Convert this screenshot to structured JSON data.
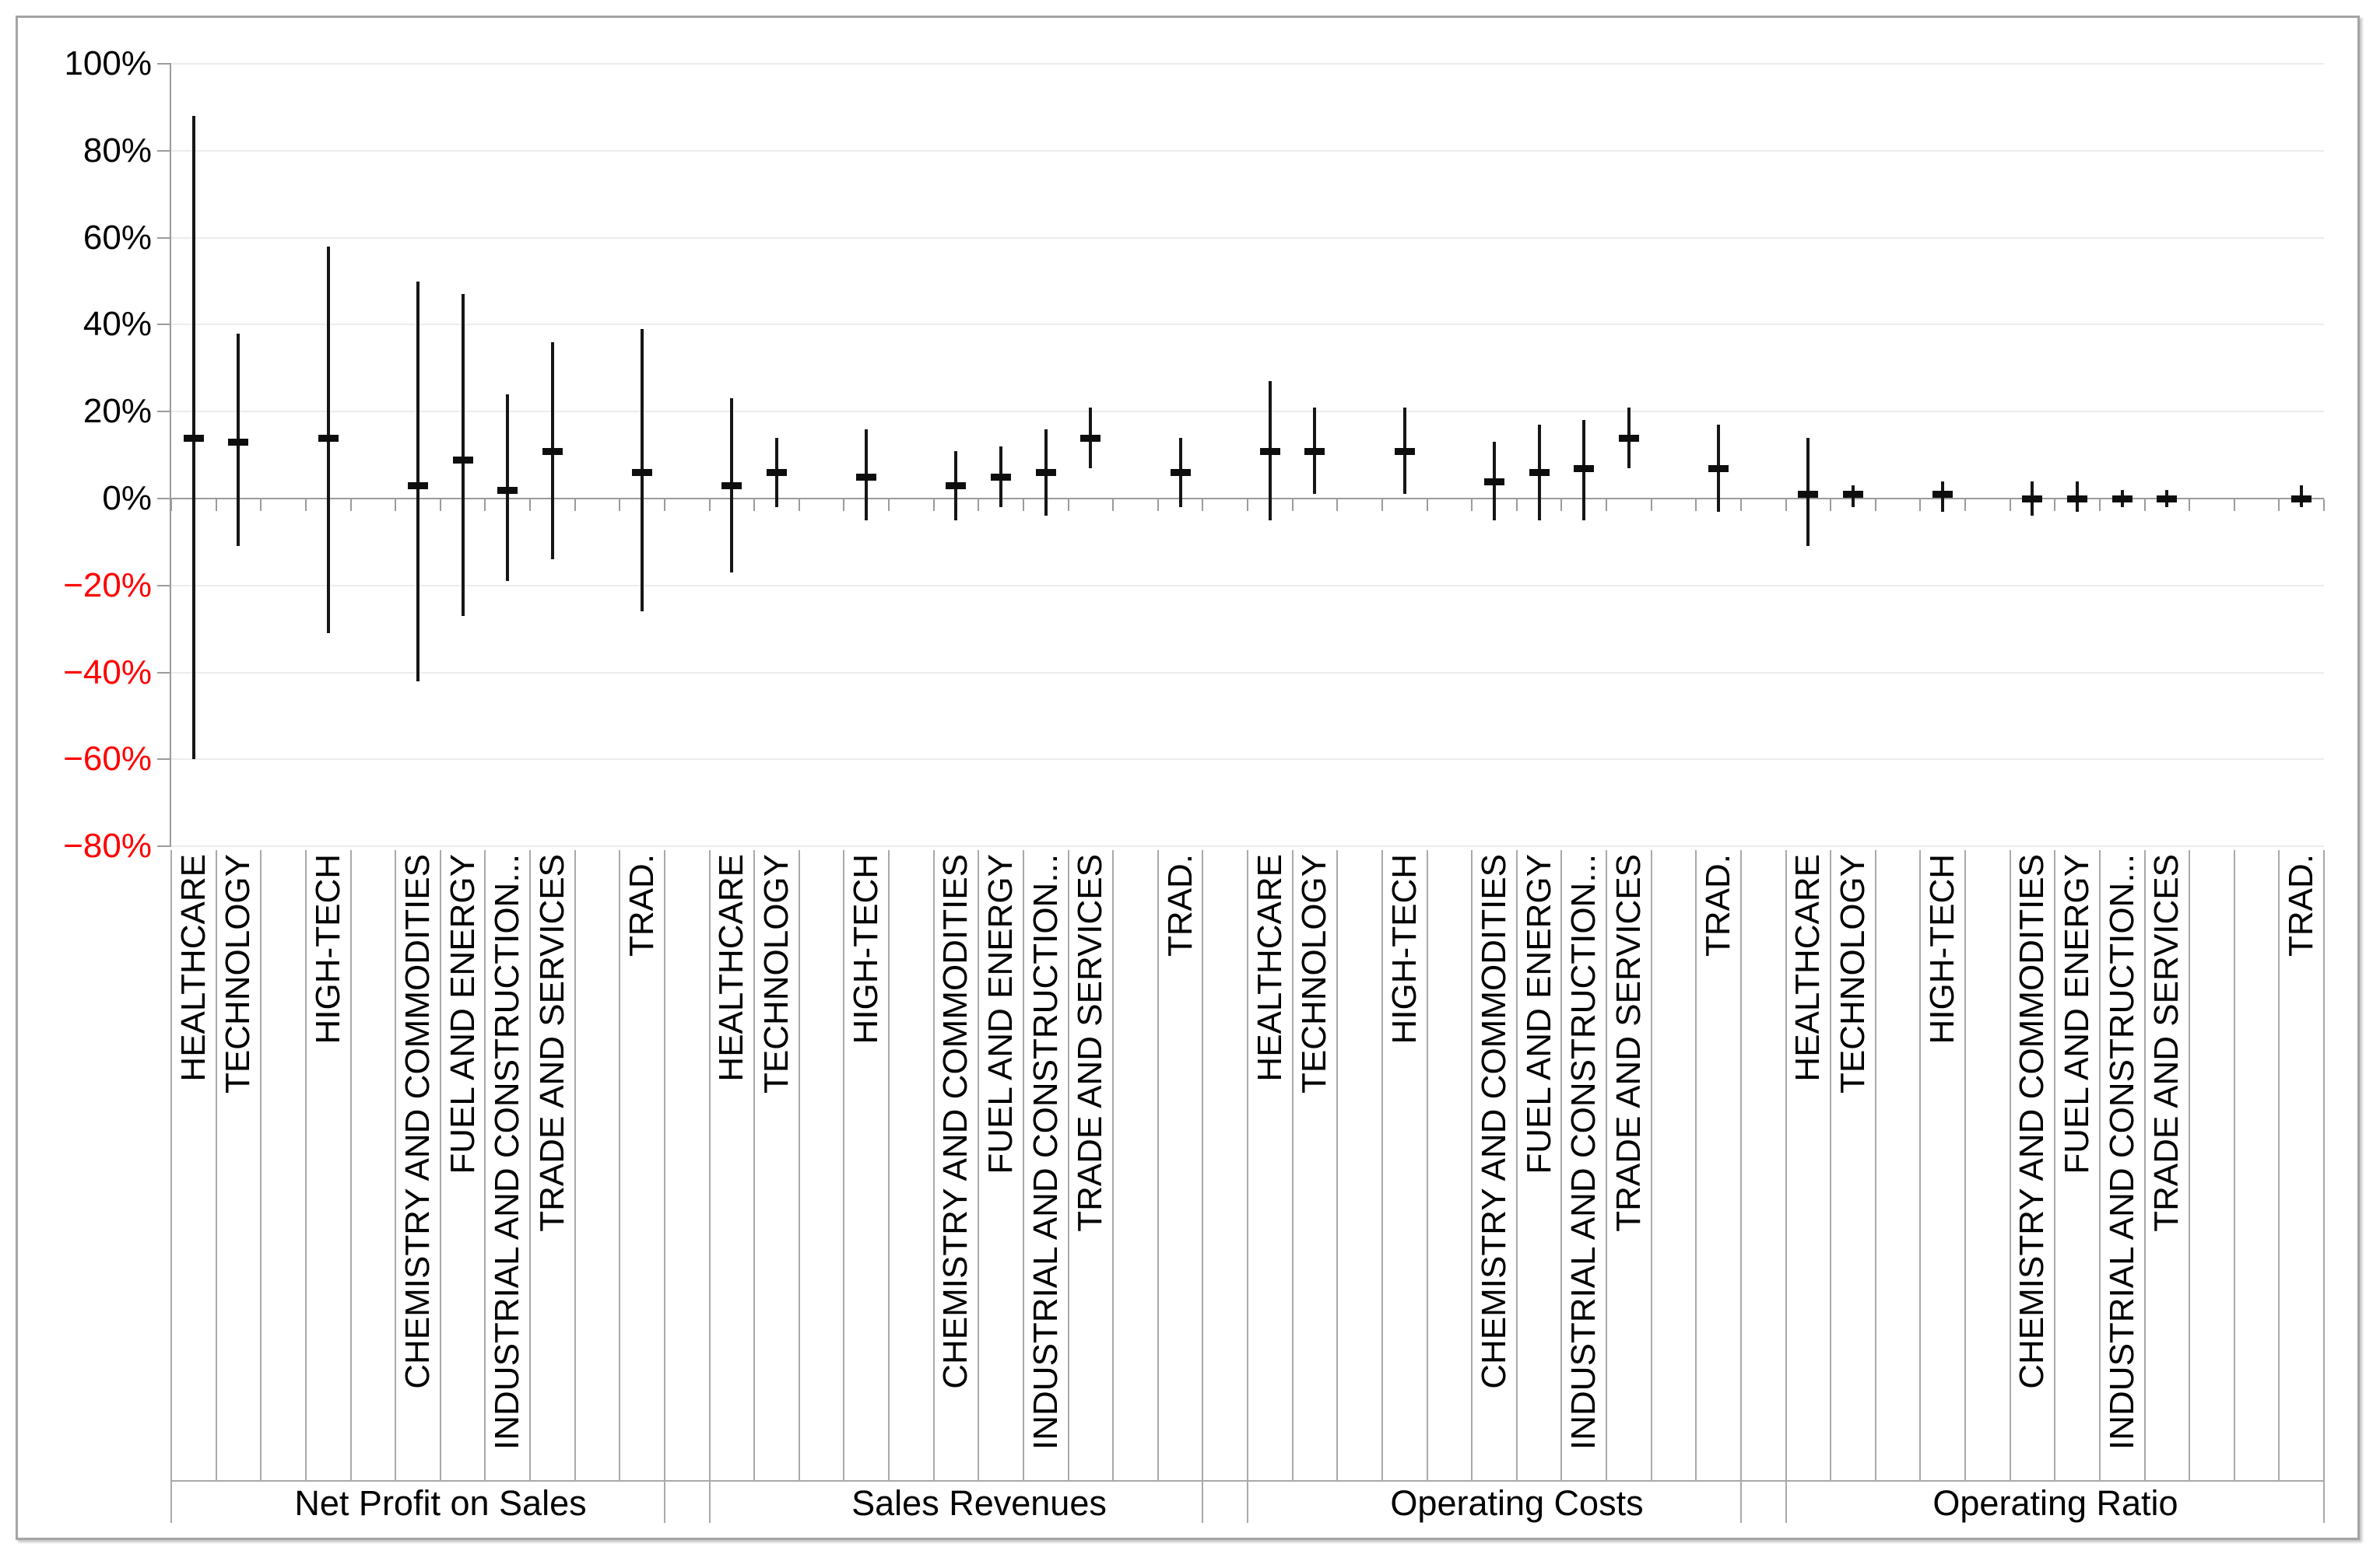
{
  "chart_data": {
    "type": "hlc-stock",
    "title": "",
    "legend": "none",
    "grid": true,
    "ylim": [
      -80,
      100
    ],
    "ytick_step": 20,
    "ylabel_format": "percent",
    "negative_label_color": "#ff0000",
    "positive_label_color": "#000000",
    "y_ticks": [
      {
        "value": 100,
        "label": "100%"
      },
      {
        "value": 80,
        "label": "80%"
      },
      {
        "value": 60,
        "label": "60%"
      },
      {
        "value": 40,
        "label": "40%"
      },
      {
        "value": 20,
        "label": "20%"
      },
      {
        "value": 0,
        "label": "0%"
      },
      {
        "value": -20,
        "label": "−20%"
      },
      {
        "value": -40,
        "label": "−40%"
      },
      {
        "value": -60,
        "label": "−60%"
      },
      {
        "value": -80,
        "label": "−80%"
      }
    ],
    "layout_hints": {
      "slots_per_group": 12,
      "bars_read": "high / low / close marker, values in percent"
    },
    "groups": [
      {
        "label": "Net Profit on Sales",
        "categories": [
          {
            "label": "HEALTHCARE",
            "high": 88,
            "low": -60,
            "close": 14,
            "slot": 0
          },
          {
            "label": "TECHNOLOGY",
            "high": 38,
            "low": -11,
            "close": 13,
            "slot": 1
          },
          {
            "label": "HIGH-TECH",
            "high": 58,
            "low": -31,
            "close": 14,
            "slot": 3
          },
          {
            "label": "CHEMISTRY AND COMMODITIES",
            "high": 50,
            "low": -42,
            "close": 3,
            "slot": 5
          },
          {
            "label": "FUEL AND ENERGY",
            "high": 47,
            "low": -27,
            "close": 9,
            "slot": 6
          },
          {
            "label": "INDUSTRIAL AND CONSTRUCTION...",
            "high": 24,
            "low": -19,
            "close": 2,
            "slot": 7
          },
          {
            "label": "TRADE AND SERVICES",
            "high": 36,
            "low": -14,
            "close": 11,
            "slot": 8
          },
          {
            "label": "TRAD.",
            "high": 39,
            "low": -26,
            "close": 6,
            "slot": 10
          }
        ]
      },
      {
        "label": "Sales Revenues",
        "categories": [
          {
            "label": "HEALTHCARE",
            "high": 23,
            "low": -17,
            "close": 3,
            "slot": 0
          },
          {
            "label": "TECHNOLOGY",
            "high": 14,
            "low": -2,
            "close": 6,
            "slot": 1
          },
          {
            "label": "HIGH-TECH",
            "high": 16,
            "low": -5,
            "close": 5,
            "slot": 3
          },
          {
            "label": "CHEMISTRY AND COMMODITIES",
            "high": 11,
            "low": -5,
            "close": 3,
            "slot": 5
          },
          {
            "label": "FUEL AND ENERGY",
            "high": 12,
            "low": -2,
            "close": 5,
            "slot": 6
          },
          {
            "label": "INDUSTRIAL AND CONSTRUCTION...",
            "high": 16,
            "low": -4,
            "close": 6,
            "slot": 7
          },
          {
            "label": "TRADE AND SERVICES",
            "high": 21,
            "low": 7,
            "close": 14,
            "slot": 8
          },
          {
            "label": "TRAD.",
            "high": 14,
            "low": -2,
            "close": 6,
            "slot": 10
          }
        ]
      },
      {
        "label": "Operating Costs",
        "categories": [
          {
            "label": "HEALTHCARE",
            "high": 27,
            "low": -5,
            "close": 11,
            "slot": 0
          },
          {
            "label": "TECHNOLOGY",
            "high": 21,
            "low": 1,
            "close": 11,
            "slot": 1
          },
          {
            "label": "HIGH-TECH",
            "high": 21,
            "low": 1,
            "close": 11,
            "slot": 3
          },
          {
            "label": "CHEMISTRY AND COMMODITIES",
            "high": 13,
            "low": -5,
            "close": 4,
            "slot": 5
          },
          {
            "label": "FUEL AND ENERGY",
            "high": 17,
            "low": -5,
            "close": 6,
            "slot": 6
          },
          {
            "label": "INDUSTRIAL AND CONSTRUCTION...",
            "high": 18,
            "low": -5,
            "close": 7,
            "slot": 7
          },
          {
            "label": "TRADE AND SERVICES",
            "high": 21,
            "low": 7,
            "close": 14,
            "slot": 8
          },
          {
            "label": "TRAD.",
            "high": 17,
            "low": -3,
            "close": 7,
            "slot": 10
          }
        ]
      },
      {
        "label": "Operating Ratio",
        "categories": [
          {
            "label": "HEALTHCARE",
            "high": 14,
            "low": -11,
            "close": 1,
            "slot": 0
          },
          {
            "label": "TECHNOLOGY",
            "high": 3,
            "low": -2,
            "close": 1,
            "slot": 1
          },
          {
            "label": "HIGH-TECH",
            "high": 4,
            "low": -3,
            "close": 1,
            "slot": 3
          },
          {
            "label": "CHEMISTRY AND COMMODITIES",
            "high": 4,
            "low": -4,
            "close": 0,
            "slot": 5
          },
          {
            "label": "FUEL AND ENERGY",
            "high": 4,
            "low": -3,
            "close": 0,
            "slot": 6
          },
          {
            "label": "INDUSTRIAL AND CONSTRUCTION...",
            "high": 2,
            "low": -2,
            "close": 0,
            "slot": 7
          },
          {
            "label": "TRADE AND SERVICES",
            "high": 2,
            "low": -2,
            "close": 0,
            "slot": 8
          },
          {
            "label": "TRAD.",
            "high": 3,
            "low": -2,
            "close": 0,
            "slot": 11
          }
        ]
      }
    ]
  }
}
